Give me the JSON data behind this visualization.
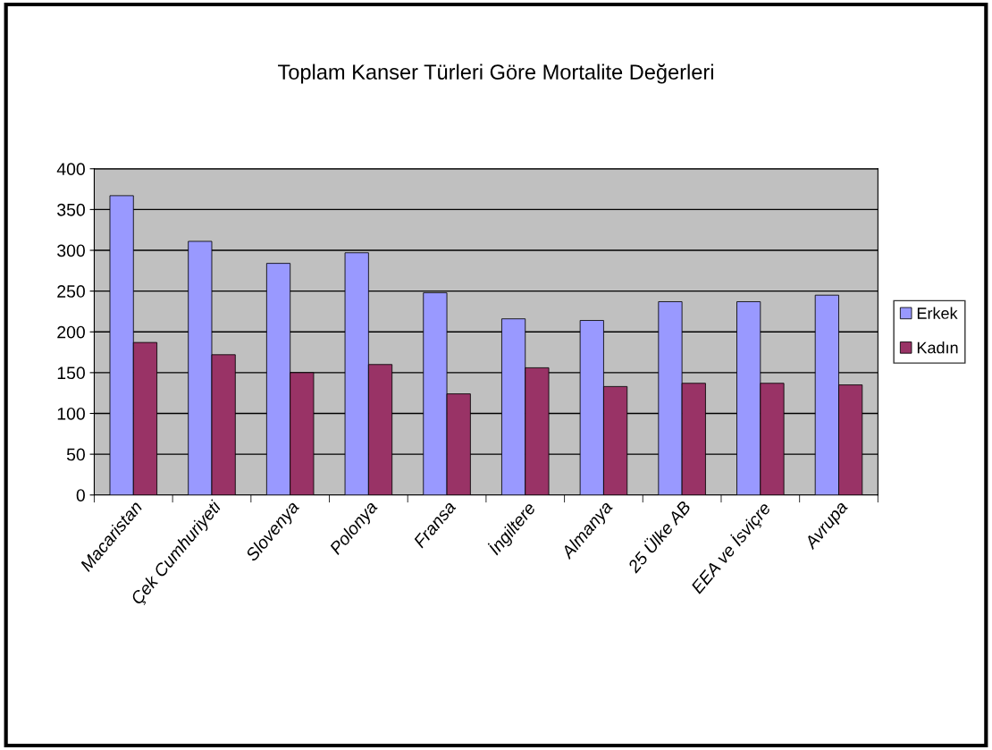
{
  "chart_data": {
    "type": "bar",
    "title": "Toplam Kanser Türleri Göre Mortalite Değerleri",
    "categories": [
      "Macaristan",
      "Çek Cumhuriyeti",
      "Slovenya",
      "Polonya",
      "Fransa",
      "İngiltere",
      "Almanya",
      "25 Ülke AB",
      "EEA ve İsviçre",
      "Avrupa"
    ],
    "series": [
      {
        "name": "Erkek",
        "color": "#9999ff",
        "values": [
          367,
          311,
          284,
          297,
          248,
          216,
          214,
          237,
          237,
          245
        ]
      },
      {
        "name": "Kadın",
        "color": "#993366",
        "values": [
          187,
          172,
          150,
          160,
          124,
          156,
          133,
          137,
          137,
          135
        ]
      }
    ],
    "ylim": [
      0,
      400
    ],
    "yticks": [
      0,
      50,
      100,
      150,
      200,
      250,
      300,
      350,
      400
    ],
    "grid": "y",
    "legend": "right"
  }
}
